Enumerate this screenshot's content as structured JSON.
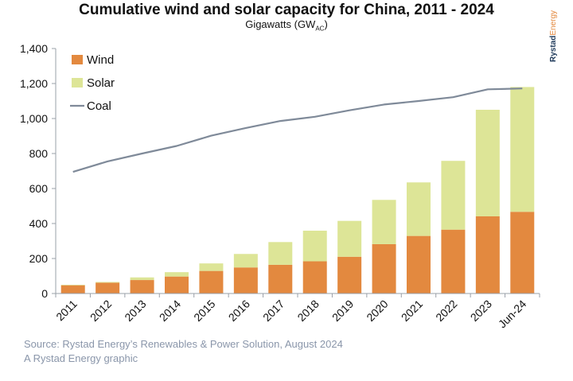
{
  "title": "Cumulative wind and solar capacity for China, 2011 - 2024",
  "subtitle": {
    "main": "Gigawatts (GW",
    "sub": "AC",
    "close": ")"
  },
  "brand": {
    "part1": "Rystad",
    "part2": "Energy"
  },
  "footer": {
    "source": "Source: Rystad Energy’s Renewables & Power Solution, August 2024",
    "credit": "A Rystad Energy graphic"
  },
  "colors": {
    "wind": "#e3893f",
    "solar": "#dde597",
    "coal": "#7f8a99"
  },
  "chart_data": {
    "type": "bar",
    "stacked": true,
    "categories": [
      "2011",
      "2012",
      "2013",
      "2014",
      "2015",
      "2016",
      "2017",
      "2018",
      "2019",
      "2020",
      "2021",
      "2022",
      "2023",
      "Jun-24"
    ],
    "series": [
      {
        "name": "Wind",
        "type": "bar",
        "values": [
          47,
          62,
          77,
          97,
          129,
          149,
          164,
          184,
          210,
          282,
          329,
          365,
          441,
          467
        ]
      },
      {
        "name": "Solar",
        "type": "bar",
        "values": [
          3,
          4,
          15,
          25,
          43,
          77,
          130,
          175,
          205,
          253,
          306,
          393,
          609,
          713
        ]
      },
      {
        "name": "Coal",
        "type": "line",
        "values": [
          695,
          755,
          800,
          843,
          902,
          946,
          986,
          1010,
          1047,
          1080,
          1100,
          1122,
          1167,
          1172
        ]
      }
    ],
    "ylim": [
      0,
      1400
    ],
    "yticks": [
      0,
      200,
      400,
      600,
      800,
      1000,
      1200,
      1400
    ],
    "ytick_labels": [
      "0",
      "200",
      "400",
      "600",
      "800",
      "1,000",
      "1,200",
      "1,400"
    ],
    "legend": {
      "position": "top-left",
      "entries": [
        "Wind",
        "Solar",
        "Coal"
      ]
    },
    "grid": false
  }
}
